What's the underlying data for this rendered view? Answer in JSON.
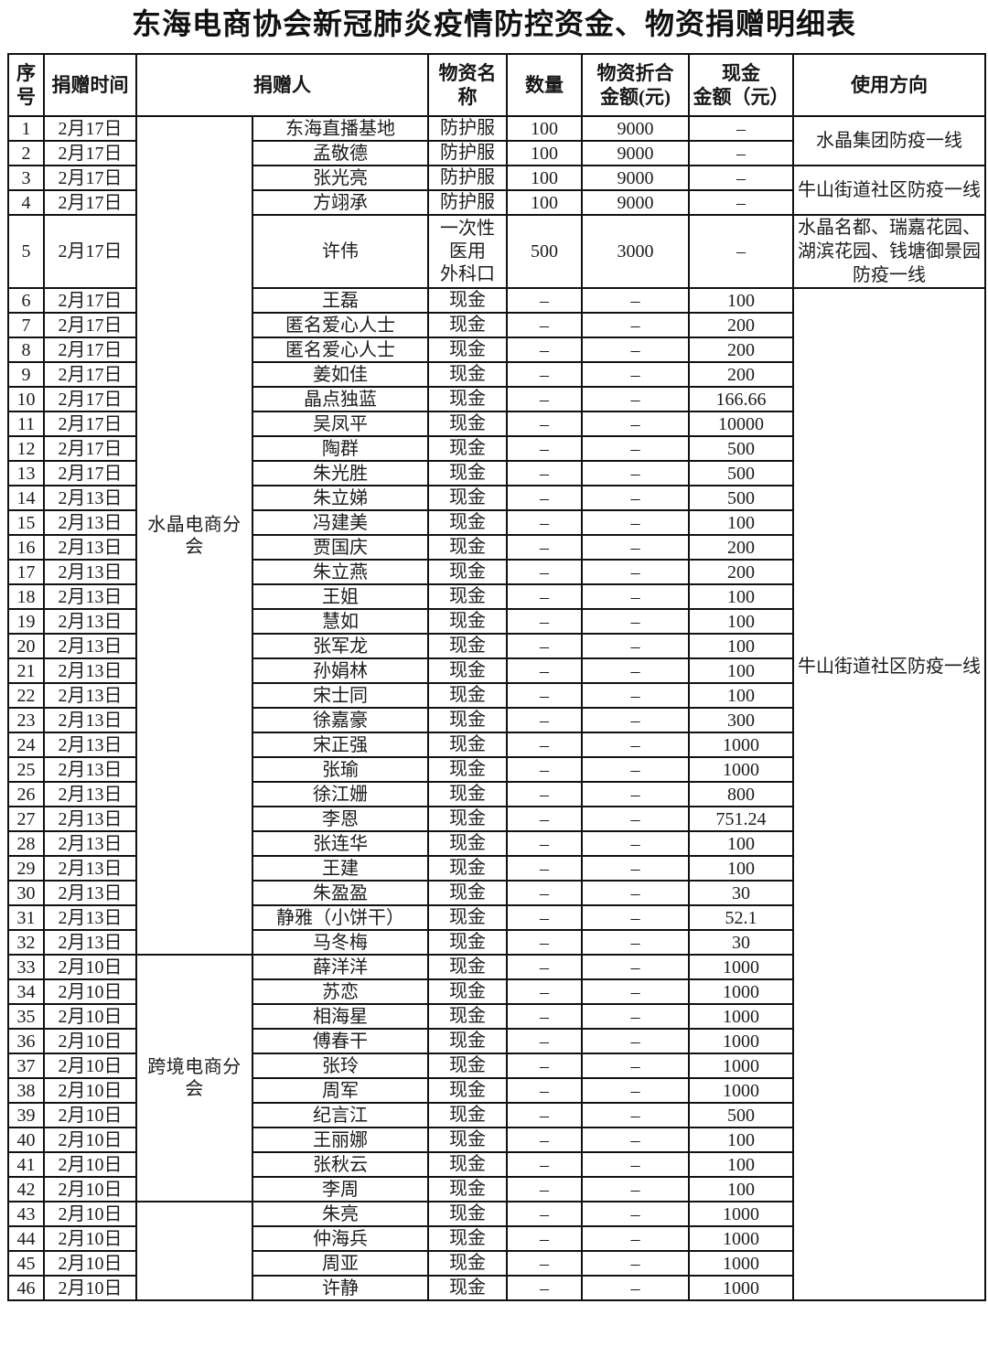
{
  "title": "东海电商协会新冠肺炎疫情防控资金、物资捐赠明细表",
  "table": {
    "headers": {
      "no": "序号",
      "date": "捐赠时间",
      "donor": "捐赠人",
      "item": "物资名称",
      "qty": "数量",
      "material_amount": "物资折合\n金额(元)",
      "cash_amount": "现金\n金额（元）",
      "usage": "使用方向"
    },
    "groups": [
      {
        "label": "水晶电商分会",
        "from": 1,
        "to": 32
      },
      {
        "label": "跨境电商分会",
        "from": 33,
        "to": 42
      },
      {
        "label": "",
        "from": 43,
        "to": 46
      }
    ],
    "usages": [
      {
        "label": "水晶集团防疫一线",
        "from": 1,
        "to": 2
      },
      {
        "label": "牛山街道社区防疫一线",
        "from": 3,
        "to": 4
      },
      {
        "label": "水晶名都、瑞嘉花园、湖滨花园、钱塘御景园防疫一线",
        "from": 5,
        "to": 5
      },
      {
        "label": "牛山街道社区防疫一线",
        "from": 6,
        "to": 46
      }
    ],
    "rows": [
      {
        "no": "1",
        "date": "2月17日",
        "name": "东海直播基地",
        "item": "防护服",
        "qty": "100",
        "material_amount": "9000",
        "cash_amount": "–"
      },
      {
        "no": "2",
        "date": "2月17日",
        "name": "孟敬德",
        "item": "防护服",
        "qty": "100",
        "material_amount": "9000",
        "cash_amount": "–"
      },
      {
        "no": "3",
        "date": "2月17日",
        "name": "张光亮",
        "item": "防护服",
        "qty": "100",
        "material_amount": "9000",
        "cash_amount": "–"
      },
      {
        "no": "4",
        "date": "2月17日",
        "name": "方翊承",
        "item": "防护服",
        "qty": "100",
        "material_amount": "9000",
        "cash_amount": "–"
      },
      {
        "no": "5",
        "date": "2月17日",
        "name": "许伟",
        "item": "一次性\n医用\n外科口",
        "qty": "500",
        "material_amount": "3000",
        "cash_amount": "–"
      },
      {
        "no": "6",
        "date": "2月17日",
        "name": "王磊",
        "item": "现金",
        "qty": "–",
        "material_amount": "–",
        "cash_amount": "100"
      },
      {
        "no": "7",
        "date": "2月17日",
        "name": "匿名爱心人士",
        "item": "现金",
        "qty": "–",
        "material_amount": "–",
        "cash_amount": "200"
      },
      {
        "no": "8",
        "date": "2月17日",
        "name": "匿名爱心人士",
        "item": "现金",
        "qty": "–",
        "material_amount": "–",
        "cash_amount": "200"
      },
      {
        "no": "9",
        "date": "2月17日",
        "name": "姜如佳",
        "item": "现金",
        "qty": "–",
        "material_amount": "–",
        "cash_amount": "200"
      },
      {
        "no": "10",
        "date": "2月17日",
        "name": "晶点独蓝",
        "item": "现金",
        "qty": "–",
        "material_amount": "–",
        "cash_amount": "166.66"
      },
      {
        "no": "11",
        "date": "2月17日",
        "name": "吴凤平",
        "item": "现金",
        "qty": "–",
        "material_amount": "–",
        "cash_amount": "10000"
      },
      {
        "no": "12",
        "date": "2月17日",
        "name": "陶群",
        "item": "现金",
        "qty": "–",
        "material_amount": "–",
        "cash_amount": "500"
      },
      {
        "no": "13",
        "date": "2月17日",
        "name": "朱光胜",
        "item": "现金",
        "qty": "–",
        "material_amount": "–",
        "cash_amount": "500"
      },
      {
        "no": "14",
        "date": "2月13日",
        "name": "朱立娣",
        "item": "现金",
        "qty": "–",
        "material_amount": "–",
        "cash_amount": "500"
      },
      {
        "no": "15",
        "date": "2月13日",
        "name": "冯建美",
        "item": "现金",
        "qty": "–",
        "material_amount": "–",
        "cash_amount": "100"
      },
      {
        "no": "16",
        "date": "2月13日",
        "name": "贾国庆",
        "item": "现金",
        "qty": "–",
        "material_amount": "–",
        "cash_amount": "200"
      },
      {
        "no": "17",
        "date": "2月13日",
        "name": "朱立燕",
        "item": "现金",
        "qty": "–",
        "material_amount": "–",
        "cash_amount": "200"
      },
      {
        "no": "18",
        "date": "2月13日",
        "name": "王姐",
        "item": "现金",
        "qty": "–",
        "material_amount": "–",
        "cash_amount": "100"
      },
      {
        "no": "19",
        "date": "2月13日",
        "name": "慧如",
        "item": "现金",
        "qty": "–",
        "material_amount": "–",
        "cash_amount": "100"
      },
      {
        "no": "20",
        "date": "2月13日",
        "name": "张军龙",
        "item": "现金",
        "qty": "–",
        "material_amount": "–",
        "cash_amount": "100"
      },
      {
        "no": "21",
        "date": "2月13日",
        "name": "孙娟林",
        "item": "现金",
        "qty": "–",
        "material_amount": "–",
        "cash_amount": "100"
      },
      {
        "no": "22",
        "date": "2月13日",
        "name": "宋士同",
        "item": "现金",
        "qty": "–",
        "material_amount": "–",
        "cash_amount": "100"
      },
      {
        "no": "23",
        "date": "2月13日",
        "name": "徐嘉豪",
        "item": "现金",
        "qty": "–",
        "material_amount": "–",
        "cash_amount": "300"
      },
      {
        "no": "24",
        "date": "2月13日",
        "name": "宋正强",
        "item": "现金",
        "qty": "–",
        "material_amount": "–",
        "cash_amount": "1000"
      },
      {
        "no": "25",
        "date": "2月13日",
        "name": "张瑜",
        "item": "现金",
        "qty": "–",
        "material_amount": "–",
        "cash_amount": "1000"
      },
      {
        "no": "26",
        "date": "2月13日",
        "name": "徐江姗",
        "item": "现金",
        "qty": "–",
        "material_amount": "–",
        "cash_amount": "800"
      },
      {
        "no": "27",
        "date": "2月13日",
        "name": "李恩",
        "item": "现金",
        "qty": "–",
        "material_amount": "–",
        "cash_amount": "751.24"
      },
      {
        "no": "28",
        "date": "2月13日",
        "name": "张连华",
        "item": "现金",
        "qty": "–",
        "material_amount": "–",
        "cash_amount": "100"
      },
      {
        "no": "29",
        "date": "2月13日",
        "name": "王建",
        "item": "现金",
        "qty": "–",
        "material_amount": "–",
        "cash_amount": "100"
      },
      {
        "no": "30",
        "date": "2月13日",
        "name": "朱盈盈",
        "item": "现金",
        "qty": "–",
        "material_amount": "–",
        "cash_amount": "30"
      },
      {
        "no": "31",
        "date": "2月13日",
        "name": "静雅（小饼干）",
        "item": "现金",
        "qty": "–",
        "material_amount": "–",
        "cash_amount": "52.1"
      },
      {
        "no": "32",
        "date": "2月13日",
        "name": "马冬梅",
        "item": "现金",
        "qty": "–",
        "material_amount": "–",
        "cash_amount": "30"
      },
      {
        "no": "33",
        "date": "2月10日",
        "name": "薛洋洋",
        "item": "现金",
        "qty": "–",
        "material_amount": "–",
        "cash_amount": "1000"
      },
      {
        "no": "34",
        "date": "2月10日",
        "name": "苏恋",
        "item": "现金",
        "qty": "–",
        "material_amount": "–",
        "cash_amount": "1000"
      },
      {
        "no": "35",
        "date": "2月10日",
        "name": "相海星",
        "item": "现金",
        "qty": "–",
        "material_amount": "–",
        "cash_amount": "1000"
      },
      {
        "no": "36",
        "date": "2月10日",
        "name": "傅春干",
        "item": "现金",
        "qty": "–",
        "material_amount": "–",
        "cash_amount": "1000"
      },
      {
        "no": "37",
        "date": "2月10日",
        "name": "张玲",
        "item": "现金",
        "qty": "–",
        "material_amount": "–",
        "cash_amount": "1000"
      },
      {
        "no": "38",
        "date": "2月10日",
        "name": "周军",
        "item": "现金",
        "qty": "–",
        "material_amount": "–",
        "cash_amount": "1000"
      },
      {
        "no": "39",
        "date": "2月10日",
        "name": "纪言江",
        "item": "现金",
        "qty": "–",
        "material_amount": "–",
        "cash_amount": "500"
      },
      {
        "no": "40",
        "date": "2月10日",
        "name": "王丽娜",
        "item": "现金",
        "qty": "–",
        "material_amount": "–",
        "cash_amount": "100"
      },
      {
        "no": "41",
        "date": "2月10日",
        "name": "张秋云",
        "item": "现金",
        "qty": "–",
        "material_amount": "–",
        "cash_amount": "100"
      },
      {
        "no": "42",
        "date": "2月10日",
        "name": "李周",
        "item": "现金",
        "qty": "–",
        "material_amount": "–",
        "cash_amount": "100"
      },
      {
        "no": "43",
        "date": "2月10日",
        "name": "朱亮",
        "item": "现金",
        "qty": "–",
        "material_amount": "–",
        "cash_amount": "1000"
      },
      {
        "no": "44",
        "date": "2月10日",
        "name": "仲海兵",
        "item": "现金",
        "qty": "–",
        "material_amount": "–",
        "cash_amount": "1000"
      },
      {
        "no": "45",
        "date": "2月10日",
        "name": "周亚",
        "item": "现金",
        "qty": "–",
        "material_amount": "–",
        "cash_amount": "1000"
      },
      {
        "no": "46",
        "date": "2月10日",
        "name": "许静",
        "item": "现金",
        "qty": "–",
        "material_amount": "–",
        "cash_amount": "1000"
      }
    ]
  }
}
